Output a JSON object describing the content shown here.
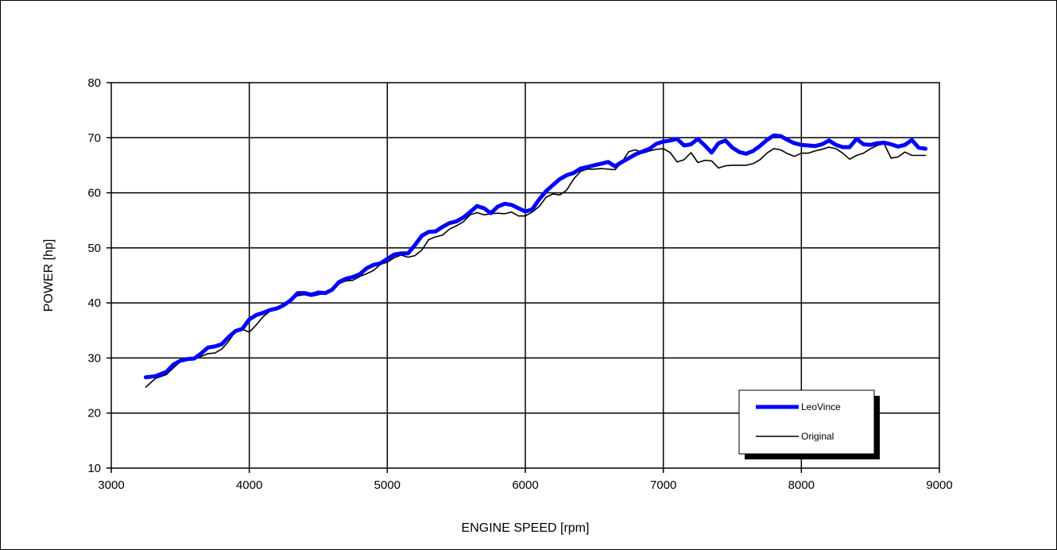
{
  "chart_data": {
    "type": "line",
    "title": "",
    "xlabel": "ENGINE SPEED [rpm]",
    "ylabel": "POWER [hp]",
    "xlim": [
      3000,
      9000
    ],
    "ylim": [
      10,
      80
    ],
    "xticks": [
      "3000",
      "4000",
      "5000",
      "6000",
      "7000",
      "8000",
      "9000"
    ],
    "yticks": [
      "10",
      "20",
      "30",
      "40",
      "50",
      "60",
      "70",
      "80"
    ],
    "grid": true,
    "legend_position": "bottom-right",
    "series": [
      {
        "name": "LeoVince",
        "color": "#0000ff",
        "x": [
          3250,
          3320,
          3400,
          3450,
          3500,
          3550,
          3600,
          3650,
          3700,
          3750,
          3800,
          3850,
          3900,
          3950,
          4000,
          4050,
          4100,
          4150,
          4200,
          4250,
          4300,
          4350,
          4400,
          4450,
          4500,
          4550,
          4600,
          4650,
          4700,
          4750,
          4800,
          4850,
          4900,
          4950,
          5000,
          5050,
          5100,
          5150,
          5200,
          5250,
          5300,
          5350,
          5400,
          5450,
          5500,
          5550,
          5600,
          5650,
          5700,
          5750,
          5800,
          5850,
          5900,
          5950,
          6000,
          6050,
          6100,
          6150,
          6200,
          6250,
          6300,
          6350,
          6400,
          6450,
          6500,
          6550,
          6600,
          6650,
          6700,
          6750,
          6800,
          6850,
          6900,
          6950,
          7000,
          7050,
          7100,
          7150,
          7200,
          7250,
          7300,
          7350,
          7400,
          7450,
          7500,
          7550,
          7600,
          7650,
          7700,
          7750,
          7800,
          7850,
          7900,
          7950,
          8000,
          8050,
          8100,
          8150,
          8200,
          8250,
          8300,
          8350,
          8400,
          8450,
          8500,
          8550,
          8600,
          8650,
          8700,
          8750,
          8800,
          8850,
          8900
        ],
        "y": [
          26.5,
          26.7,
          27.5,
          28.8,
          29.5,
          29.8,
          29.9,
          30.8,
          31.9,
          32.1,
          32.5,
          33.8,
          34.9,
          35.3,
          37.0,
          37.8,
          38.2,
          38.7,
          39.0,
          39.6,
          40.5,
          41.8,
          41.8,
          41.5,
          41.9,
          41.8,
          42.4,
          43.8,
          44.4,
          44.7,
          45.2,
          46.3,
          46.9,
          47.2,
          48.0,
          48.8,
          49.0,
          49.0,
          50.5,
          52.2,
          52.9,
          53.0,
          53.8,
          54.5,
          54.8,
          55.5,
          56.5,
          57.6,
          57.2,
          56.3,
          57.5,
          58.0,
          57.8,
          57.2,
          56.6,
          57.0,
          58.8,
          60.3,
          61.4,
          62.5,
          63.2,
          63.6,
          64.4,
          64.7,
          65.0,
          65.3,
          65.6,
          64.8,
          65.6,
          66.3,
          67.0,
          67.5,
          68.0,
          68.9,
          69.3,
          69.5,
          69.8,
          68.6,
          68.8,
          69.8,
          68.6,
          67.3,
          69.0,
          69.5,
          68.2,
          67.4,
          67.1,
          67.6,
          68.5,
          69.6,
          70.4,
          70.3,
          69.6,
          69.0,
          68.7,
          68.6,
          68.5,
          68.8,
          69.5,
          68.7,
          68.3,
          68.3,
          69.8,
          68.8,
          68.7,
          69.0,
          69.1,
          68.8,
          68.4,
          68.7,
          69.6,
          68.2,
          68.0
        ]
      },
      {
        "name": "Original",
        "color": "#000000",
        "x": [
          3250,
          3320,
          3400,
          3450,
          3500,
          3550,
          3600,
          3650,
          3700,
          3750,
          3800,
          3850,
          3900,
          3950,
          4000,
          4050,
          4100,
          4150,
          4200,
          4250,
          4300,
          4350,
          4400,
          4450,
          4500,
          4550,
          4600,
          4650,
          4700,
          4750,
          4800,
          4850,
          4900,
          4950,
          5000,
          5050,
          5100,
          5150,
          5200,
          5250,
          5300,
          5350,
          5400,
          5450,
          5500,
          5550,
          5600,
          5650,
          5700,
          5750,
          5800,
          5850,
          5900,
          5950,
          6000,
          6050,
          6100,
          6150,
          6200,
          6250,
          6300,
          6350,
          6400,
          6450,
          6500,
          6550,
          6600,
          6650,
          6700,
          6750,
          6800,
          6850,
          6900,
          6950,
          7000,
          7050,
          7100,
          7150,
          7200,
          7250,
          7300,
          7350,
          7400,
          7450,
          7500,
          7550,
          7600,
          7650,
          7700,
          7750,
          7800,
          7850,
          7900,
          7950,
          8000,
          8050,
          8100,
          8150,
          8200,
          8250,
          8300,
          8350,
          8400,
          8450,
          8500,
          8550,
          8600,
          8650,
          8700,
          8750,
          8800,
          8850,
          8900
        ],
        "y": [
          24.7,
          26.3,
          27.0,
          28.2,
          29.3,
          29.6,
          29.7,
          30.3,
          30.8,
          30.9,
          31.6,
          33.0,
          34.8,
          35.2,
          34.7,
          36.0,
          37.5,
          38.5,
          39.0,
          39.8,
          40.7,
          41.3,
          41.5,
          41.2,
          41.5,
          41.8,
          42.2,
          43.5,
          44.0,
          44.1,
          44.8,
          45.3,
          45.9,
          47.0,
          47.4,
          48.2,
          48.7,
          48.3,
          48.6,
          49.6,
          51.5,
          52.0,
          52.3,
          53.4,
          54.0,
          54.7,
          56.0,
          56.4,
          56.0,
          56.2,
          56.3,
          56.2,
          56.5,
          55.8,
          55.8,
          56.5,
          57.5,
          59.2,
          59.8,
          59.6,
          60.5,
          62.5,
          63.9,
          64.3,
          64.3,
          64.4,
          64.3,
          64.2,
          65.6,
          67.5,
          67.8,
          67.2,
          67.6,
          67.9,
          68.0,
          67.3,
          65.6,
          66.0,
          67.3,
          65.5,
          65.9,
          65.8,
          64.5,
          64.9,
          65.0,
          65.0,
          65.0,
          65.3,
          66.0,
          67.2,
          68.0,
          67.8,
          67.1,
          66.6,
          67.2,
          67.2,
          67.6,
          67.9,
          68.3,
          68.0,
          67.2,
          66.1,
          66.8,
          67.2,
          68.0,
          68.6,
          68.9,
          66.3,
          66.5,
          67.4,
          66.8,
          66.8,
          66.8
        ]
      }
    ]
  }
}
